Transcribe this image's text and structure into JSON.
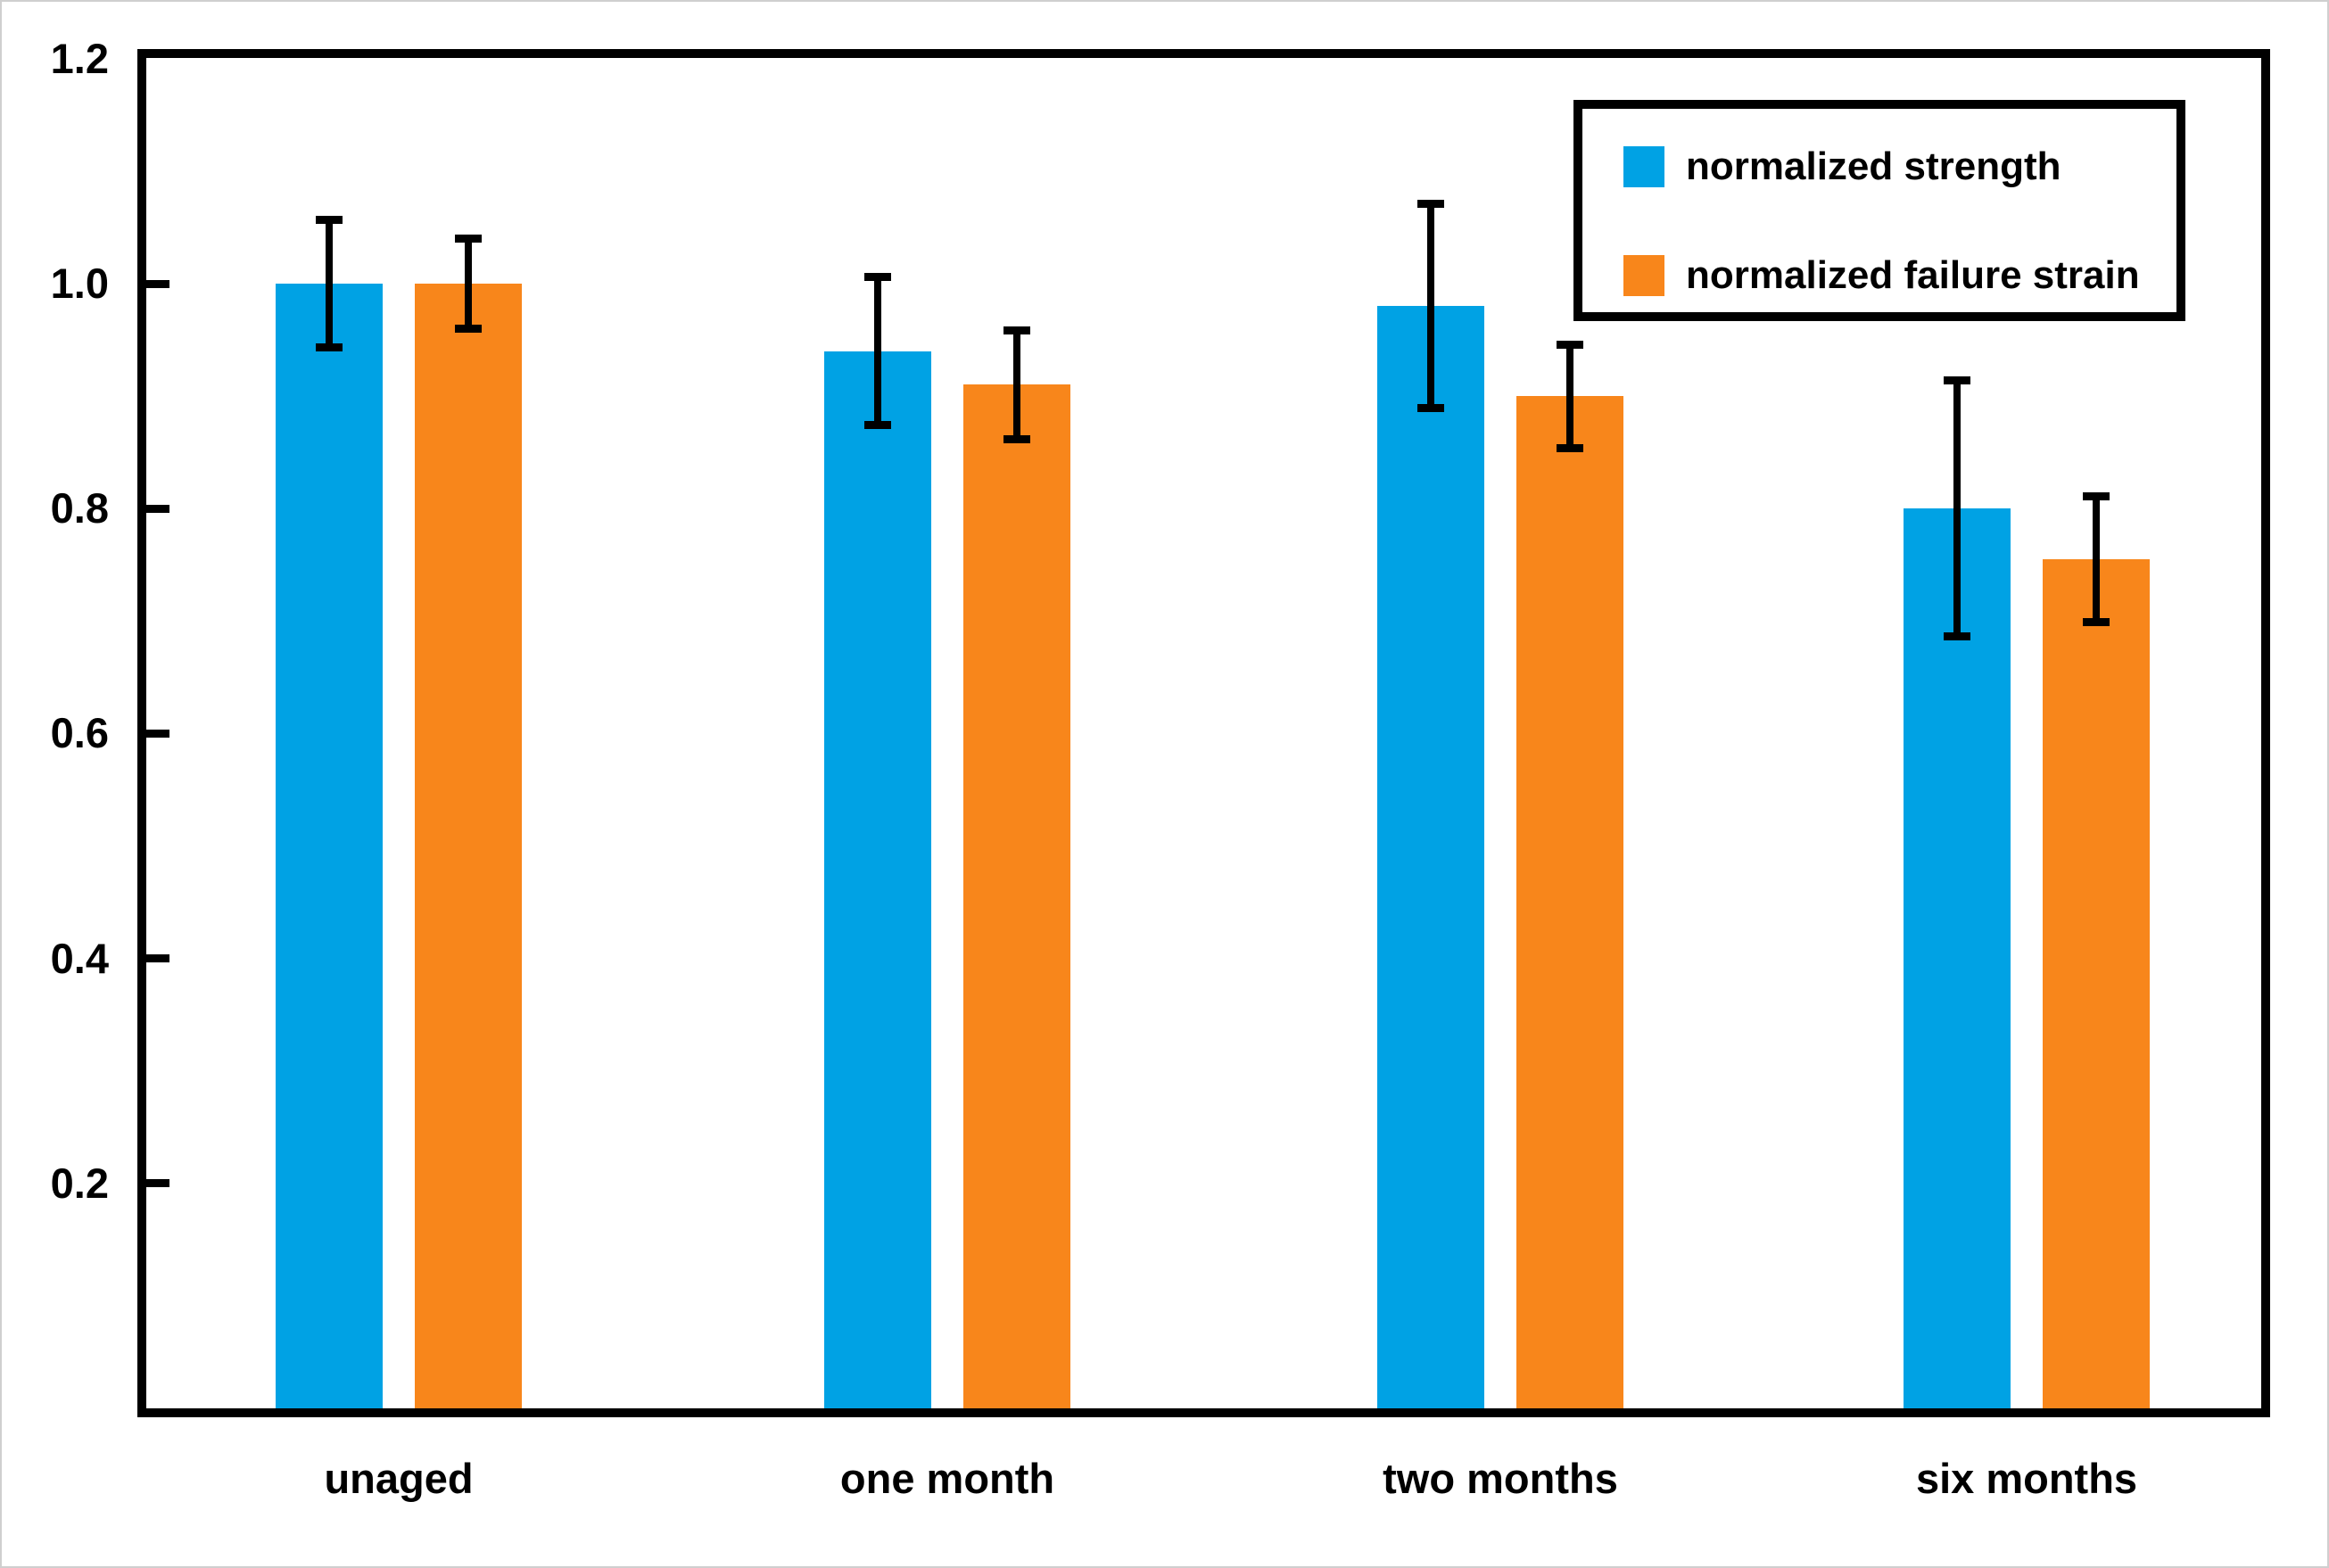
{
  "figure": {
    "background": "#ffffff",
    "frame_color": "#000000",
    "error_bar_color": "#000000"
  },
  "chart_data": {
    "type": "bar",
    "title": "",
    "xlabel": "",
    "ylabel": "",
    "categories": [
      "unaged",
      "one month",
      "two months",
      "six months"
    ],
    "series": [
      {
        "name": "normalized strength",
        "color": "#00A2E4",
        "values": [
          1.0,
          0.94,
          0.98,
          0.8
        ],
        "errors": [
          0.057,
          0.066,
          0.091,
          0.114
        ]
      },
      {
        "name": "normalized failure strain",
        "color": "#F8861B",
        "values": [
          1.0,
          0.91,
          0.9,
          0.755
        ],
        "errors": [
          0.04,
          0.048,
          0.046,
          0.056
        ]
      }
    ],
    "ylim": [
      0,
      1.2
    ],
    "yticks": [
      0.2,
      0.4,
      0.6,
      0.8,
      1.0,
      1.2
    ],
    "ytick_labels": [
      "0.2",
      "0.4",
      "0.6",
      "0.8",
      "1.0",
      "1.2"
    ],
    "grid": false,
    "legend_position": "top-right",
    "error_bars": true
  },
  "legend": {
    "items": [
      {
        "label": "normalized strength",
        "color": "#00A2E4"
      },
      {
        "label": "normalized failure strain",
        "color": "#F8861B"
      }
    ]
  }
}
